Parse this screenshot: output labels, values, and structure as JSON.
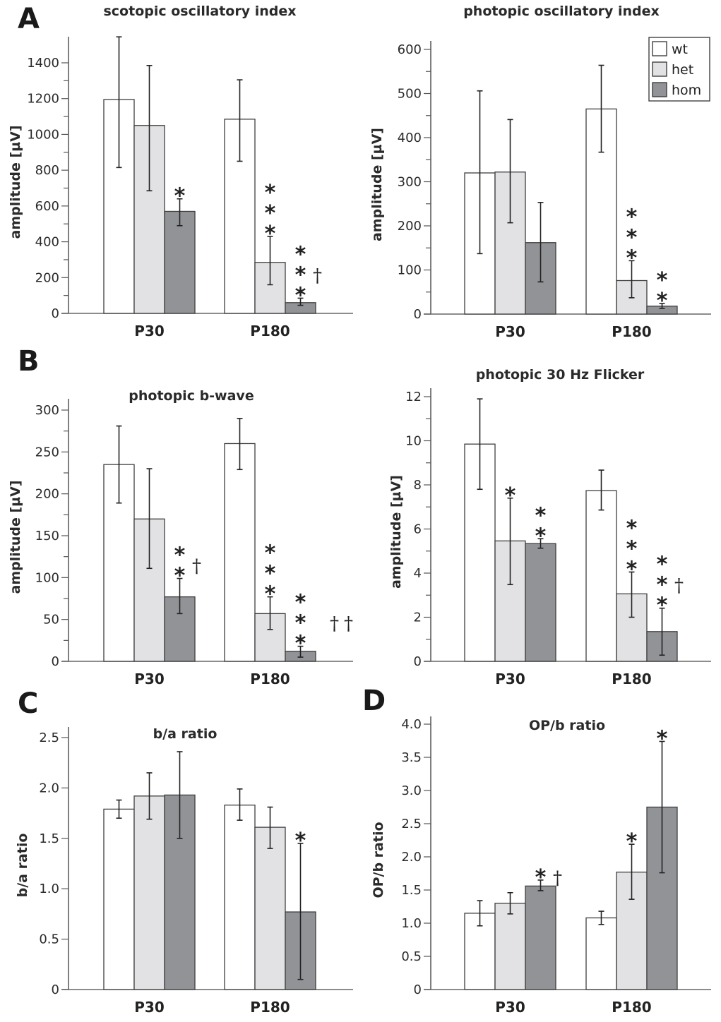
{
  "legend": {
    "entries": [
      {
        "label": "wt",
        "color": "#ffffff"
      },
      {
        "label": "het",
        "color": "#e2e2e4"
      },
      {
        "label": "hom",
        "color": "#929396"
      }
    ]
  },
  "chart_data": [
    {
      "panel": "A",
      "position": "top-left",
      "type": "bar",
      "title": "scotopic oscillatory index",
      "ylabel": "amplitude [µV]",
      "xlabel": "",
      "categories": [
        "P30",
        "P180"
      ],
      "ylim": [
        0,
        1550
      ],
      "yticks": [
        0,
        200,
        400,
        600,
        800,
        1000,
        1200,
        1400
      ],
      "yticklabels": [
        "0",
        "200",
        "400",
        "600",
        "800",
        "1000",
        "1200",
        "1400"
      ],
      "minor_ticks": true,
      "series": [
        {
          "name": "wt",
          "values": [
            1195,
            1085
          ],
          "err_high": [
            1545,
            1305
          ],
          "err_low": [
            815,
            850
          ]
        },
        {
          "name": "het",
          "values": [
            1050,
            285
          ],
          "err_high": [
            1385,
            430
          ],
          "err_low": [
            685,
            160
          ]
        },
        {
          "name": "hom",
          "values": [
            570,
            60
          ],
          "err_high": [
            640,
            85
          ],
          "err_low": [
            490,
            45
          ]
        }
      ],
      "annotations": [
        {
          "series": "hom",
          "category": "P30",
          "stars": 1,
          "daggers": 0
        },
        {
          "series": "het",
          "category": "P180",
          "stars": 3,
          "daggers": 0
        },
        {
          "series": "hom",
          "category": "P180",
          "stars": 3,
          "daggers": 1
        }
      ],
      "legend": false
    },
    {
      "panel": "",
      "position": "top-right",
      "type": "bar",
      "title": "photopic oscillatory index",
      "ylabel": "amplitude [µV]",
      "xlabel": "",
      "categories": [
        "P30",
        "P180"
      ],
      "ylim": [
        0,
        620
      ],
      "yticks": [
        0,
        100,
        200,
        300,
        400,
        500,
        600
      ],
      "yticklabels": [
        "0",
        "100",
        "200",
        "300",
        "400",
        "500",
        "600"
      ],
      "minor_ticks": true,
      "series": [
        {
          "name": "wt",
          "values": [
            320,
            465
          ],
          "err_high": [
            506,
            564
          ],
          "err_low": [
            137,
            367
          ]
        },
        {
          "name": "het",
          "values": [
            322,
            76
          ],
          "err_high": [
            441,
            121
          ],
          "err_low": [
            207,
            37
          ]
        },
        {
          "name": "hom",
          "values": [
            162,
            18
          ],
          "err_high": [
            253,
            24
          ],
          "err_low": [
            73,
            13
          ]
        }
      ],
      "annotations": [
        {
          "series": "het",
          "category": "P180",
          "stars": 3,
          "daggers": 0
        },
        {
          "series": "hom",
          "category": "P180",
          "stars": 2,
          "daggers": 0
        }
      ],
      "legend": true,
      "legend_position": "top-right"
    },
    {
      "panel": "B",
      "position": "middle-left",
      "type": "bar",
      "title": "photopic b-wave",
      "ylabel": "amplitude [µV]",
      "xlabel": "",
      "categories": [
        "P30",
        "P180"
      ],
      "ylim": [
        0,
        315
      ],
      "yticks": [
        0,
        50,
        100,
        150,
        200,
        250,
        300
      ],
      "yticklabels": [
        "0",
        "50",
        "100",
        "150",
        "200",
        "250",
        "300"
      ],
      "minor_ticks": true,
      "series": [
        {
          "name": "wt",
          "values": [
            235,
            260
          ],
          "err_high": [
            281,
            290
          ],
          "err_low": [
            189,
            229
          ]
        },
        {
          "name": "het",
          "values": [
            170,
            57
          ],
          "err_high": [
            230,
            77
          ],
          "err_low": [
            111,
            38
          ]
        },
        {
          "name": "hom",
          "values": [
            77,
            12
          ],
          "err_high": [
            99,
            18
          ],
          "err_low": [
            57,
            5
          ]
        }
      ],
      "annotations": [
        {
          "series": "hom",
          "category": "P30",
          "stars": 2,
          "daggers": 1
        },
        {
          "series": "het",
          "category": "P180",
          "stars": 3,
          "daggers": 0
        },
        {
          "series": "hom",
          "category": "P180",
          "stars": 3,
          "daggers": 2
        }
      ],
      "legend": false
    },
    {
      "panel": "",
      "position": "middle-right",
      "type": "bar",
      "title": "photopic 30 Hz Flicker",
      "ylabel": "amplitude [µV]",
      "xlabel": "",
      "categories": [
        "P30",
        "P180"
      ],
      "ylim": [
        0,
        12.4
      ],
      "yticks": [
        0,
        2,
        4,
        6,
        8,
        10,
        12
      ],
      "yticklabels": [
        "0",
        "2",
        "4",
        "6",
        "8",
        "10",
        "12"
      ],
      "minor_ticks": true,
      "series": [
        {
          "name": "wt",
          "values": [
            9.85,
            7.74
          ],
          "err_high": [
            11.9,
            8.67
          ],
          "err_low": [
            7.8,
            6.86
          ]
        },
        {
          "name": "het",
          "values": [
            5.46,
            3.06
          ],
          "err_high": [
            7.4,
            4.05
          ],
          "err_low": [
            3.48,
            2.0
          ]
        },
        {
          "name": "hom",
          "values": [
            5.34,
            1.35
          ],
          "err_high": [
            5.56,
            2.41
          ],
          "err_low": [
            5.13,
            0.28
          ]
        }
      ],
      "annotations": [
        {
          "series": "het",
          "category": "P30",
          "stars": 1,
          "daggers": 0
        },
        {
          "series": "hom",
          "category": "P30",
          "stars": 2,
          "daggers": 0
        },
        {
          "series": "het",
          "category": "P180",
          "stars": 3,
          "daggers": 0
        },
        {
          "series": "hom",
          "category": "P180",
          "stars": 3,
          "daggers": 1
        }
      ],
      "legend": false
    },
    {
      "panel": "C",
      "position": "bottom-left",
      "type": "bar",
      "title": "b/a ratio",
      "ylabel": "b/a ratio",
      "xlabel": "",
      "categories": [
        "P30",
        "P180"
      ],
      "ylim": [
        0,
        2.6
      ],
      "yticks": [
        0,
        0.5,
        1.0,
        1.5,
        2.0,
        2.5
      ],
      "yticklabels": [
        "0",
        "0.5",
        "1.0",
        "1.5",
        "2.0",
        "2.5"
      ],
      "minor_ticks": false,
      "series": [
        {
          "name": "wt",
          "values": [
            1.79,
            1.83
          ],
          "err_high": [
            1.88,
            1.99
          ],
          "err_low": [
            1.7,
            1.68
          ]
        },
        {
          "name": "het",
          "values": [
            1.92,
            1.61
          ],
          "err_high": [
            2.15,
            1.81
          ],
          "err_low": [
            1.69,
            1.4
          ]
        },
        {
          "name": "hom",
          "values": [
            1.93,
            0.77
          ],
          "err_high": [
            2.36,
            1.45
          ],
          "err_low": [
            1.5,
            0.1
          ]
        }
      ],
      "annotations": [
        {
          "series": "hom",
          "category": "P180",
          "stars": 1,
          "daggers": 0
        }
      ],
      "legend": false
    },
    {
      "panel": "D",
      "position": "bottom-right",
      "type": "bar",
      "title": "OP/b ratio",
      "ylabel": "OP/b ratio",
      "xlabel": "",
      "categories": [
        "P30",
        "P180"
      ],
      "ylim": [
        0,
        4.1
      ],
      "yticks": [
        0,
        0.5,
        1.0,
        1.5,
        2.0,
        2.5,
        3.0,
        3.5,
        4.0
      ],
      "yticklabels": [
        "0",
        "0.5",
        "1.0",
        "1.5",
        "2.0",
        "2.5",
        "3.0",
        "3.5",
        "4.0"
      ],
      "minor_ticks": false,
      "series": [
        {
          "name": "wt",
          "values": [
            1.15,
            1.08
          ],
          "err_high": [
            1.34,
            1.18
          ],
          "err_low": [
            0.96,
            0.98
          ]
        },
        {
          "name": "het",
          "values": [
            1.3,
            1.77
          ],
          "err_high": [
            1.46,
            2.19
          ],
          "err_low": [
            1.14,
            1.36
          ]
        },
        {
          "name": "hom",
          "values": [
            1.56,
            2.75
          ],
          "err_high": [
            1.65,
            3.74
          ],
          "err_low": [
            1.49,
            1.76
          ]
        }
      ],
      "annotations": [
        {
          "series": "hom",
          "category": "P30",
          "stars": 1,
          "daggers": 1
        },
        {
          "series": "het",
          "category": "P180",
          "stars": 1,
          "daggers": 0
        },
        {
          "series": "hom",
          "category": "P180",
          "stars": 1,
          "daggers": 0
        }
      ],
      "legend": false
    }
  ]
}
